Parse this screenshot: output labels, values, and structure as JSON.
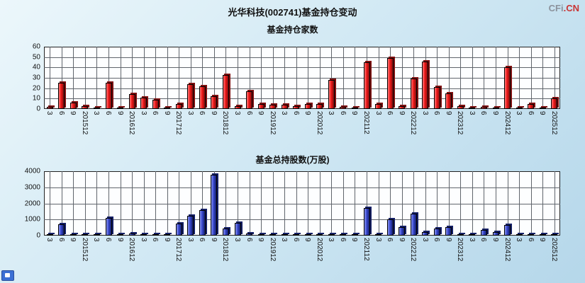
{
  "page": {
    "title": "光华科技(002741)基金持仓变动"
  },
  "brand": {
    "gray": "CFi",
    "red": ".CN"
  },
  "chart_data": [
    {
      "type": "bar",
      "title": "基金持仓家数",
      "categories": [
        "3",
        "6",
        "9",
        "201512",
        "3",
        "6",
        "9",
        "201612",
        "3",
        "6",
        "9",
        "201712",
        "3",
        "6",
        "9",
        "201812",
        "3",
        "6",
        "9",
        "201912",
        "3",
        "6",
        "9",
        "202012",
        "3",
        "6",
        "9",
        "202112",
        "3",
        "6",
        "9",
        "202212",
        "3",
        "6",
        "9",
        "202312",
        "3",
        "6",
        "9",
        "202412",
        "3",
        "6",
        "9",
        "202512"
      ],
      "values": [
        2,
        25,
        6,
        3,
        1,
        25,
        1,
        14,
        11,
        9,
        1,
        5,
        24,
        22,
        12,
        33,
        3,
        17,
        5,
        4,
        4,
        3,
        5,
        5,
        28,
        2,
        1,
        45,
        5,
        49,
        3,
        29,
        46,
        21,
        15,
        3,
        1,
        2,
        1,
        40,
        1,
        5,
        1,
        10
      ],
      "xlabel": "",
      "ylabel": "",
      "ylim": [
        0,
        60
      ],
      "yticks": [
        0,
        10,
        20,
        30,
        40,
        50,
        60
      ],
      "grid": true,
      "legend": false,
      "bar_color": "#f01818",
      "bar_highlight": "#ff7a7a",
      "bar_shadow": "#7e1010"
    },
    {
      "type": "bar",
      "title": "基金总持股数(万股)",
      "categories": [
        "3",
        "6",
        "9",
        "201512",
        "3",
        "6",
        "9",
        "201612",
        "3",
        "6",
        "9",
        "201712",
        "3",
        "6",
        "9",
        "201812",
        "3",
        "6",
        "9",
        "201912",
        "3",
        "6",
        "9",
        "202012",
        "3",
        "6",
        "9",
        "202112",
        "3",
        "6",
        "9",
        "202212",
        "3",
        "6",
        "9",
        "202312",
        "3",
        "6",
        "9",
        "202412",
        "3",
        "6",
        "9",
        "202512"
      ],
      "values": [
        10,
        700,
        60,
        20,
        30,
        1100,
        20,
        150,
        60,
        30,
        20,
        750,
        1250,
        1600,
        3800,
        450,
        800,
        120,
        50,
        60,
        50,
        40,
        60,
        50,
        80,
        30,
        20,
        1700,
        100,
        1000,
        550,
        1350,
        200,
        450,
        550,
        100,
        50,
        350,
        200,
        650,
        100,
        60,
        40,
        100
      ],
      "xlabel": "",
      "ylabel": "",
      "ylim": [
        0,
        4000
      ],
      "yticks": [
        0,
        1000,
        2000,
        3000,
        4000
      ],
      "grid": true,
      "legend": false,
      "bar_color": "#3847cf",
      "bar_highlight": "#8a96ee",
      "bar_shadow": "#141f66"
    }
  ]
}
